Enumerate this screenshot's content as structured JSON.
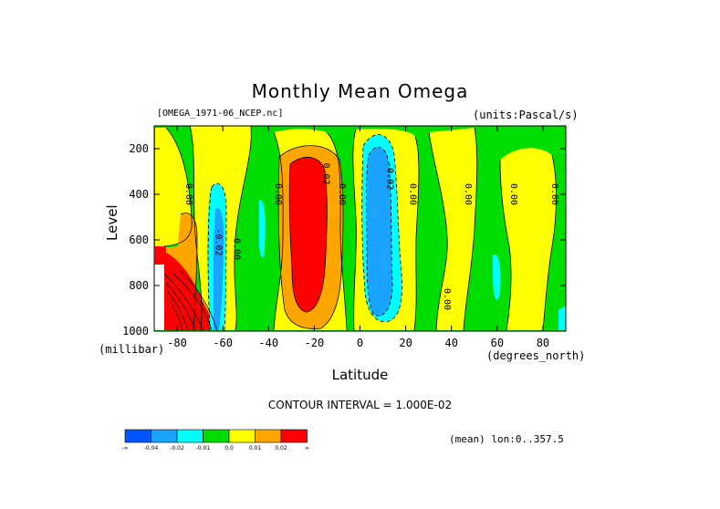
{
  "chart_data": {
    "type": "heatmap",
    "title": "Monthly Mean Omega",
    "source_label": "[OMEGA_1971-06_NCEP.nc]",
    "units_label": "(units:Pascal/s)",
    "xlabel": "Latitude",
    "xunit": "(degrees_north)",
    "ylabel": "Level",
    "yunit": "(millibar)",
    "xlim": [
      -90,
      90
    ],
    "ylim": [
      1000,
      100
    ],
    "xticks": [
      -80,
      -60,
      -40,
      -20,
      0,
      20,
      40,
      60,
      80
    ],
    "yticks": [
      1000,
      800,
      600,
      400,
      200
    ],
    "contour_interval_text": "CONTOUR INTERVAL = 1.000E-02",
    "stat_text": "(mean) lon:0..357.5",
    "contour_labels": [
      {
        "text": "0.00",
        "lat": -76,
        "level": 400
      },
      {
        "text": "-0.02",
        "lat": -63,
        "level": 610
      },
      {
        "text": "0.00",
        "lat": -55,
        "level": 640
      },
      {
        "text": "0.00",
        "lat": -37,
        "level": 400
      },
      {
        "text": "0.02",
        "lat": -16,
        "level": 310
      },
      {
        "text": "0.00",
        "lat": -9,
        "level": 400
      },
      {
        "text": "-0.02",
        "lat": 12,
        "level": 320
      },
      {
        "text": "0.00",
        "lat": 22,
        "level": 400
      },
      {
        "text": "0.00",
        "lat": 46,
        "level": 400
      },
      {
        "text": "0.00",
        "lat": 66,
        "level": 400
      },
      {
        "text": "0.00",
        "lat": 84,
        "level": 400
      },
      {
        "text": "0.00",
        "lat": 37,
        "level": 860
      }
    ],
    "colorbar": {
      "colors": [
        "#0055ff",
        "#1aa3ff",
        "#00ffff",
        "#00dd00",
        "#ffff00",
        "#ffa500",
        "#ff0000"
      ],
      "labels": [
        "-∞",
        "-0.04",
        "-0.02",
        "-0.01",
        "0.0",
        "0.01",
        "0.02",
        "∞"
      ]
    }
  }
}
